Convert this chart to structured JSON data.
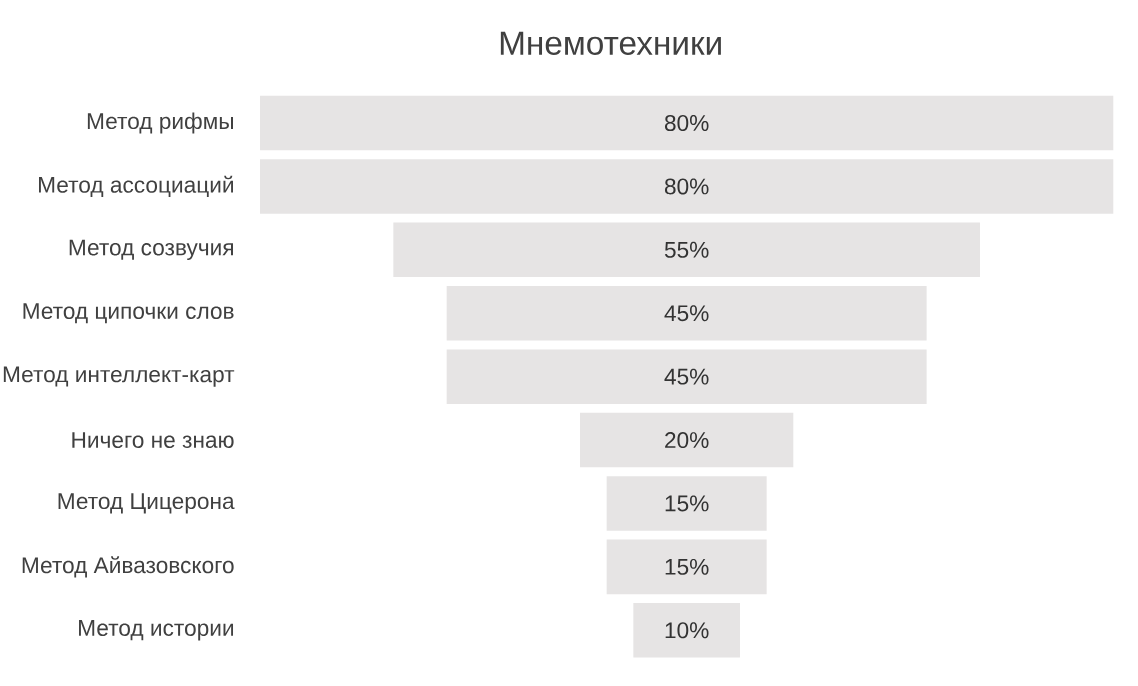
{
  "chart_data": {
    "type": "other",
    "title": "Мнемотехники",
    "categories": [
      "Метод рифмы",
      "Метод ассоциаций",
      "Метод созвучия",
      "Метод ципочки слов",
      "Метод интеллект-карт",
      "Ничего не знаю",
      "Метод Цицерона",
      "Метод Айвазовского",
      "Метод истории"
    ],
    "values": [
      80,
      80,
      55,
      45,
      45,
      20,
      15,
      15,
      10
    ],
    "value_labels": [
      "80%",
      "80%",
      "55%",
      "45%",
      "45%",
      "20%",
      "15%",
      "15%",
      "10%"
    ],
    "color": "#e6e4e4"
  }
}
